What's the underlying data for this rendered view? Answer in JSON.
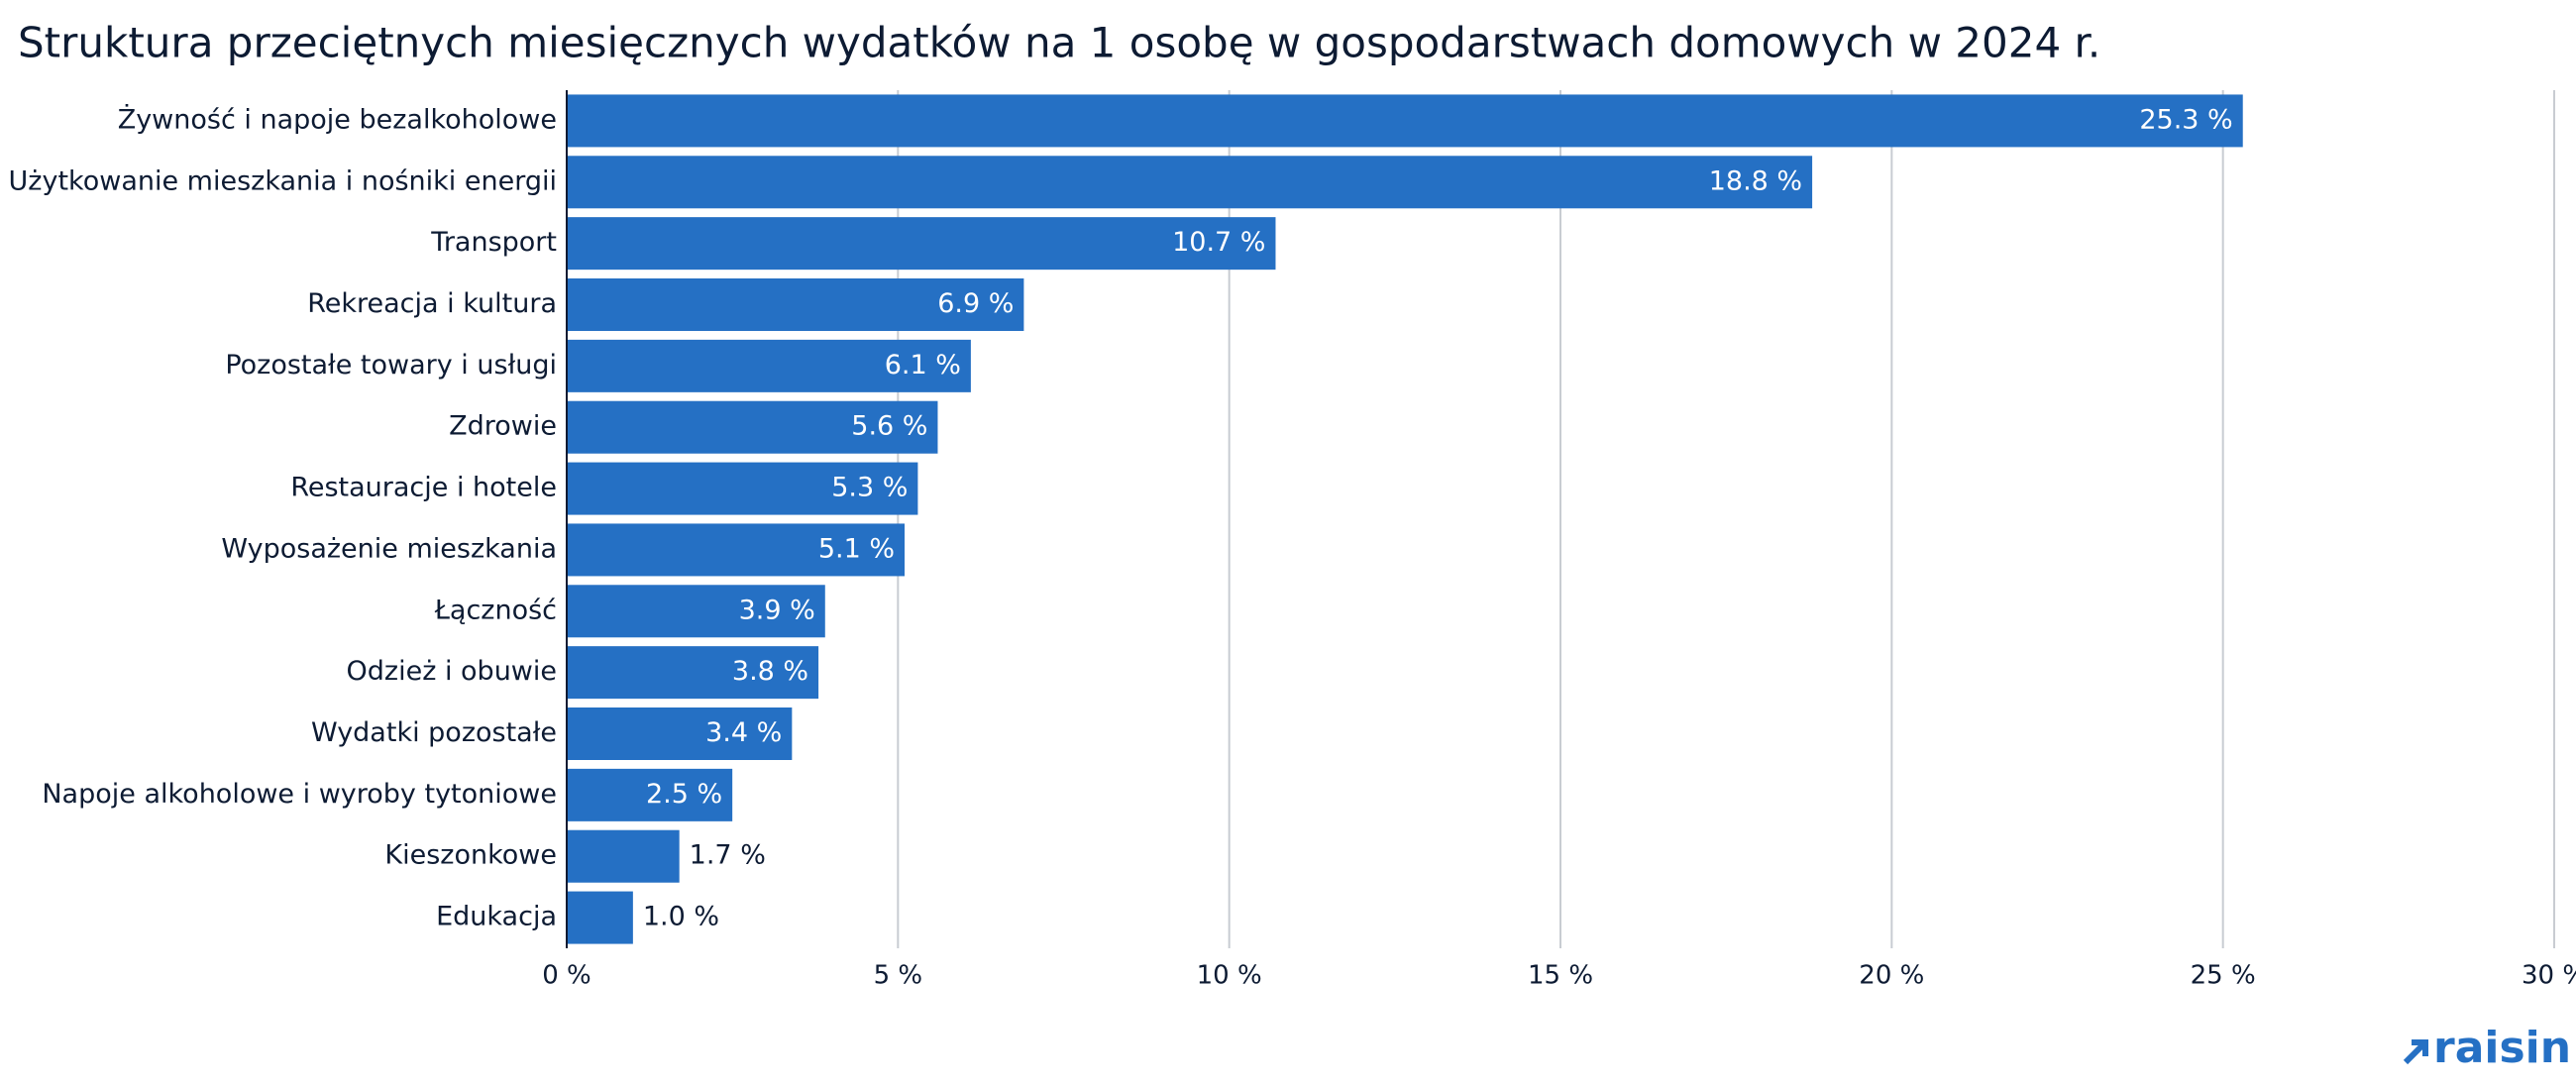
{
  "chart_data": {
    "type": "bar",
    "orientation": "horizontal",
    "title": "Struktura przeciętnych miesięcznych wydatków na 1 osobę w gospodarstwach domowych w 2024 r.",
    "categories": [
      "Żywność i napoje bezalkoholowe",
      "Użytkowanie mieszkania i nośniki energii",
      "Transport",
      "Rekreacja i kultura",
      "Pozostałe towary i usługi",
      "Zdrowie",
      "Restauracje i hotele",
      "Wyposażenie mieszkania",
      "Łączność",
      "Odzież i obuwie",
      "Wydatki pozostałe",
      "Napoje alkoholowe i wyroby tytoniowe",
      "Kieszonkowe",
      "Edukacja"
    ],
    "values": [
      25.3,
      18.8,
      10.7,
      6.9,
      6.1,
      5.6,
      5.3,
      5.1,
      3.9,
      3.8,
      3.4,
      2.5,
      1.7,
      1.0
    ],
    "value_labels": [
      "25.3 %",
      "18.8 %",
      "10.7 %",
      "6.9 %",
      "6.1 %",
      "5.6 %",
      "5.3 %",
      "5.1 %",
      "3.9 %",
      "3.8 %",
      "3.4 %",
      "2.5 %",
      "1.7 %",
      "1.0 %"
    ],
    "color": "#2570c4",
    "xlim": [
      0,
      30
    ],
    "xticks": [
      {
        "value": 0,
        "label": "0 %"
      },
      {
        "value": 5,
        "label": "5 %"
      },
      {
        "value": 10,
        "label": "10 %"
      },
      {
        "value": 15,
        "label": "15 %"
      },
      {
        "value": 20,
        "label": "20 %"
      },
      {
        "value": 25,
        "label": "25 %"
      },
      {
        "value": 30,
        "label": "30 %"
      }
    ],
    "grid": true
  },
  "brand": "raisin"
}
